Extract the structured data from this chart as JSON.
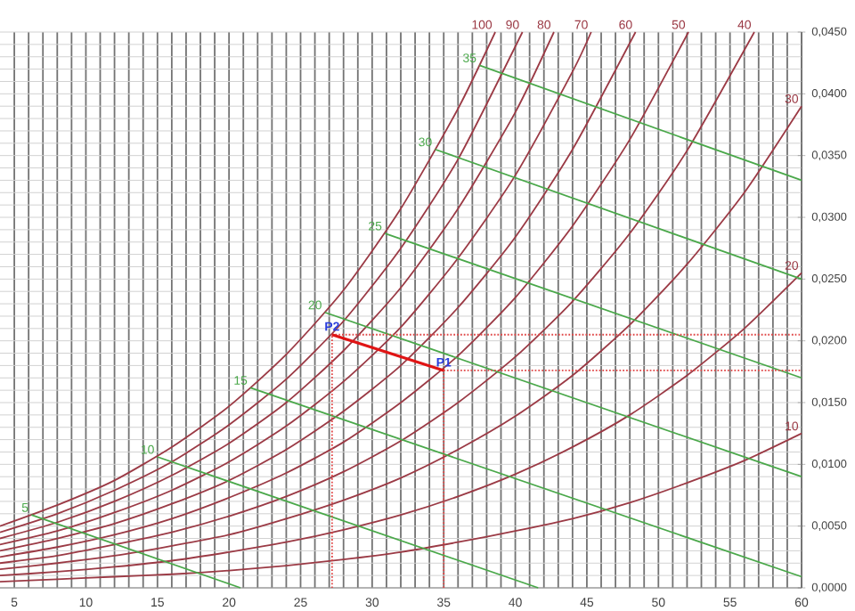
{
  "chart_data": {
    "type": "line",
    "marker": "none",
    "grid": true,
    "xlim": [
      4,
      60
    ],
    "ylim": [
      0,
      0.045
    ],
    "xticks": [
      5,
      10,
      15,
      20,
      25,
      30,
      35,
      40,
      45,
      50,
      55,
      60
    ],
    "yticks": [
      {
        "value": 0,
        "label": "0,0000"
      },
      {
        "value": 0.005,
        "label": "0,0050"
      },
      {
        "value": 0.01,
        "label": "0,0100"
      },
      {
        "value": 0.015,
        "label": "0,0150"
      },
      {
        "value": 0.02,
        "label": "0,0200"
      },
      {
        "value": 0.025,
        "label": "0,0250"
      },
      {
        "value": 0.03,
        "label": "0,0300"
      },
      {
        "value": 0.035,
        "label": "0,0350"
      },
      {
        "value": 0.04,
        "label": "0,0400"
      },
      {
        "value": 0.045,
        "label": "0,0450"
      }
    ],
    "series": [
      {
        "name": "100",
        "color": "#9b3a45",
        "x": [
          4,
          8,
          12,
          16,
          20,
          24,
          28,
          32,
          36,
          38.6
        ],
        "values": [
          0.005,
          0.0067,
          0.0087,
          0.0114,
          0.0147,
          0.0189,
          0.0241,
          0.0307,
          0.0388,
          0.045
        ]
      },
      {
        "name": "90",
        "color": "#9b3a45",
        "x": [
          4,
          8,
          12,
          16,
          20,
          24,
          28,
          32,
          36,
          40.5
        ],
        "values": [
          0.0045,
          0.006,
          0.0079,
          0.0102,
          0.0132,
          0.0169,
          0.0216,
          0.0275,
          0.0347,
          0.045
        ]
      },
      {
        "name": "80",
        "color": "#9b3a45",
        "x": [
          4,
          8,
          12,
          16,
          20,
          24,
          28,
          32,
          36,
          40,
          42.7
        ],
        "values": [
          0.004,
          0.0053,
          0.007,
          0.0091,
          0.0117,
          0.015,
          0.0192,
          0.0243,
          0.0307,
          0.0385,
          0.045
        ]
      },
      {
        "name": "70",
        "color": "#9b3a45",
        "x": [
          4,
          8,
          12,
          16,
          20,
          24,
          28,
          32,
          36,
          40,
          44,
          45.3
        ],
        "values": [
          0.0035,
          0.0046,
          0.0061,
          0.0079,
          0.0102,
          0.0131,
          0.0167,
          0.0211,
          0.0267,
          0.0334,
          0.0418,
          0.045
        ]
      },
      {
        "name": "60",
        "color": "#9b3a45",
        "x": [
          4,
          8,
          12,
          16,
          20,
          24,
          28,
          32,
          36,
          40,
          44,
          48.4
        ],
        "values": [
          0.003,
          0.004,
          0.0052,
          0.0068,
          0.0087,
          0.0112,
          0.0143,
          0.018,
          0.0227,
          0.0284,
          0.0355,
          0.045
        ]
      },
      {
        "name": "50",
        "color": "#9b3a45",
        "x": [
          4,
          8,
          12,
          16,
          20,
          24,
          28,
          32,
          36,
          40,
          44,
          48,
          52.1
        ],
        "values": [
          0.0025,
          0.0033,
          0.0043,
          0.0056,
          0.0073,
          0.0093,
          0.0118,
          0.015,
          0.0188,
          0.0235,
          0.0293,
          0.0363,
          0.045
        ]
      },
      {
        "name": "40",
        "color": "#9b3a45",
        "x": [
          4,
          8,
          12,
          16,
          20,
          24,
          28,
          32,
          36,
          40,
          44,
          48,
          52,
          56.7
        ],
        "values": [
          0.002,
          0.0026,
          0.0035,
          0.0045,
          0.0058,
          0.0074,
          0.0094,
          0.0119,
          0.015,
          0.0187,
          0.0232,
          0.0287,
          0.0354,
          0.045
        ]
      },
      {
        "name": "30",
        "color": "#9b3a45",
        "x": [
          4,
          8,
          12,
          16,
          20,
          24,
          28,
          32,
          36,
          40,
          44,
          48,
          52,
          56,
          60
        ],
        "values": [
          0.0015,
          0.002,
          0.0026,
          0.0034,
          0.0043,
          0.0056,
          0.0071,
          0.0089,
          0.0112,
          0.0139,
          0.0172,
          0.0213,
          0.0262,
          0.032,
          0.039
        ]
      },
      {
        "name": "20",
        "color": "#9b3a45",
        "x": [
          4,
          8,
          12,
          16,
          20,
          24,
          28,
          32,
          36,
          40,
          44,
          48,
          52,
          56,
          60
        ],
        "values": [
          0.001,
          0.0013,
          0.0017,
          0.0022,
          0.0029,
          0.0037,
          0.0047,
          0.0059,
          0.0074,
          0.0092,
          0.0114,
          0.014,
          0.0172,
          0.021,
          0.0255
        ]
      },
      {
        "name": "10",
        "color": "#9b3a45",
        "x": [
          4,
          8,
          12,
          16,
          20,
          24,
          28,
          32,
          36,
          40,
          44,
          48,
          52,
          56,
          60
        ],
        "values": [
          0.0005,
          0.0007,
          0.0009,
          0.0011,
          0.0014,
          0.0018,
          0.0023,
          0.0029,
          0.0037,
          0.0046,
          0.0056,
          0.0069,
          0.0085,
          0.0103,
          0.0125
        ]
      },
      {
        "name": "5",
        "color": "#4aa84a",
        "x": [
          6.2,
          20.8
        ],
        "values": [
          0.0059,
          0
        ]
      },
      {
        "name": "10",
        "color": "#4aa84a",
        "x": [
          15,
          41.6
        ],
        "values": [
          0.0106,
          0
        ]
      },
      {
        "name": "15",
        "color": "#4aa84a",
        "x": [
          21.5,
          60
        ],
        "values": [
          0.0162,
          0.0009
        ]
      },
      {
        "name": "20",
        "color": "#4aa84a",
        "x": [
          26.7,
          60
        ],
        "values": [
          0.0223,
          0.009
        ]
      },
      {
        "name": "25",
        "color": "#4aa84a",
        "x": [
          30.9,
          60
        ],
        "values": [
          0.0287,
          0.017
        ]
      },
      {
        "name": "30",
        "color": "#4aa84a",
        "x": [
          34.4,
          60
        ],
        "values": [
          0.0355,
          0.025
        ]
      },
      {
        "name": "35",
        "color": "#4aa84a",
        "x": [
          37.5,
          60
        ],
        "values": [
          0.0423,
          0.033
        ]
      },
      {
        "color": "#e04848",
        "line_style": "dotted",
        "x": [
          27.2,
          27.2
        ],
        "values": [
          0,
          0.0205
        ]
      },
      {
        "color": "#e04848",
        "line_style": "dotted",
        "x": [
          35,
          35
        ],
        "values": [
          0,
          0.0176
        ]
      },
      {
        "color": "#e04848",
        "line_style": "dotted",
        "x": [
          27.2,
          60
        ],
        "values": [
          0.0205,
          0.0205
        ]
      },
      {
        "color": "#e04848",
        "line_style": "dotted",
        "x": [
          35,
          60
        ],
        "values": [
          0.0176,
          0.0176
        ]
      },
      {
        "color": "#e01414",
        "x": [
          27.2,
          35
        ],
        "values": [
          0.0205,
          0.0176
        ]
      }
    ],
    "annotations": [
      {
        "text": "P1",
        "x": 35,
        "y": 0.0176
      },
      {
        "text": "P2",
        "x": 27.2,
        "y": 0.0205
      }
    ]
  }
}
